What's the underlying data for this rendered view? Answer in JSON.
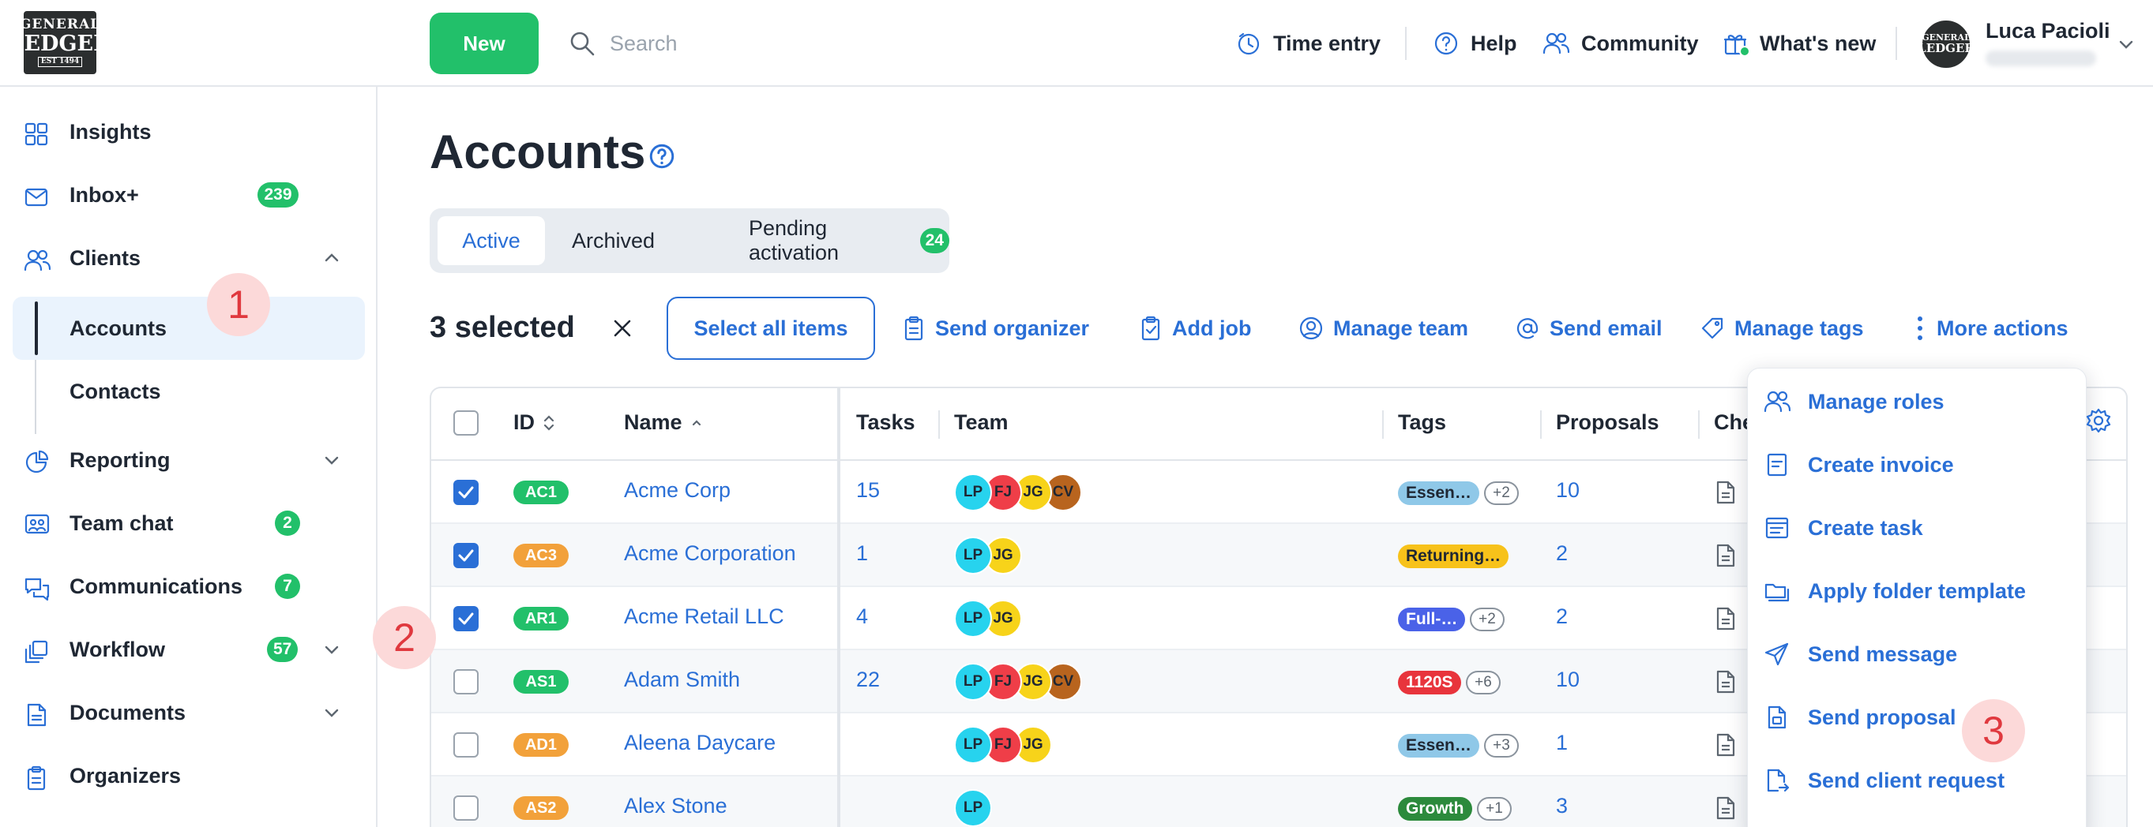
{
  "header": {
    "logo": {
      "line1": "GENERAL",
      "line2": "LEDGER",
      "line3": "EST 1494"
    },
    "new_label": "New",
    "search_placeholder": "Search",
    "nav": {
      "time_entry": "Time entry",
      "help": "Help",
      "community": "Community",
      "whats_new": "What's new"
    },
    "user": {
      "name": "Luca Pacioli"
    }
  },
  "sidebar": {
    "items": [
      {
        "label": "Insights"
      },
      {
        "label": "Inbox+",
        "badge": "239"
      },
      {
        "label": "Clients"
      },
      {
        "label": "Reporting"
      },
      {
        "label": "Team chat",
        "badge": "2"
      },
      {
        "label": "Communications",
        "badge": "7"
      },
      {
        "label": "Workflow",
        "badge": "57"
      },
      {
        "label": "Documents"
      },
      {
        "label": "Organizers"
      }
    ],
    "clients_sub": [
      {
        "label": "Accounts"
      },
      {
        "label": "Contacts"
      }
    ]
  },
  "steps": [
    "1",
    "2",
    "3"
  ],
  "page": {
    "title": "Accounts",
    "tabs": {
      "active": "Active",
      "archived": "Archived",
      "pending": "Pending activation",
      "pending_count": "24"
    }
  },
  "bulk": {
    "selected": "3 selected",
    "select_all": "Select all items",
    "actions": {
      "send_organizer": "Send organizer",
      "add_job": "Add job",
      "manage_team": "Manage team",
      "send_email": "Send email",
      "manage_tags": "Manage tags",
      "more_actions": "More actions"
    }
  },
  "table": {
    "columns": {
      "id": "ID",
      "name": "Name",
      "tasks": "Tasks",
      "team": "Team",
      "tags": "Tags",
      "proposals": "Proposals",
      "checklists": "Che"
    },
    "rows": [
      {
        "checked": true,
        "id": "AC1",
        "id_color": "#22c06a",
        "name": "Acme Corp",
        "tasks": "15",
        "team": [
          "LP",
          "FJ",
          "JG",
          "CV"
        ],
        "tag": "Essen…",
        "tag_bg": "#8fc8e8",
        "tag_fg": "#1f2733",
        "tag_more": "+2",
        "proposals": "10"
      },
      {
        "checked": true,
        "id": "AC3",
        "id_color": "#f2a13a",
        "name": "Acme Corporation",
        "tasks": "1",
        "team": [
          "LP",
          "JG"
        ],
        "tag": "Returning…",
        "tag_bg": "#f7c21a",
        "tag_fg": "#1f2733",
        "tag_more": "",
        "proposals": "2"
      },
      {
        "checked": true,
        "id": "AR1",
        "id_color": "#22c06a",
        "name": "Acme Retail LLC",
        "tasks": "4",
        "team": [
          "LP",
          "JG"
        ],
        "tag": "Full-…",
        "tag_bg": "#4a62e8",
        "tag_fg": "#ffffff",
        "tag_more": "+2",
        "proposals": "2"
      },
      {
        "checked": false,
        "id": "AS1",
        "id_color": "#22c06a",
        "name": "Adam Smith",
        "tasks": "22",
        "team": [
          "LP",
          "FJ",
          "JG",
          "CV"
        ],
        "tag": "1120S",
        "tag_bg": "#e8343c",
        "tag_fg": "#ffffff",
        "tag_more": "+6",
        "proposals": "10"
      },
      {
        "checked": false,
        "id": "AD1",
        "id_color": "#f2a13a",
        "name": "Aleena Daycare",
        "tasks": "",
        "team": [
          "LP",
          "FJ",
          "JG"
        ],
        "tag": "Essen…",
        "tag_bg": "#8fc8e8",
        "tag_fg": "#1f2733",
        "tag_more": "+3",
        "proposals": "1"
      },
      {
        "checked": false,
        "id": "AS2",
        "id_color": "#f2a13a",
        "name": "Alex Stone",
        "tasks": "",
        "team": [
          "LP"
        ],
        "tag": "Growth",
        "tag_bg": "#2c8a3c",
        "tag_fg": "#ffffff",
        "tag_more": "+1",
        "proposals": "3"
      }
    ]
  },
  "team_colors": {
    "LP": "#27d3ee",
    "FJ": "#ef3e48",
    "JG": "#f7d31a",
    "CV": "#b8641e"
  },
  "more_menu": {
    "items": [
      {
        "label": "Manage roles",
        "icon": "users-icon"
      },
      {
        "label": "Create invoice",
        "icon": "invoice-icon"
      },
      {
        "label": "Create task",
        "icon": "task-icon"
      },
      {
        "label": "Apply folder template",
        "icon": "folder-icon"
      },
      {
        "label": "Send message",
        "icon": "send-icon"
      },
      {
        "label": "Send proposal",
        "icon": "proposal-icon"
      },
      {
        "label": "Send client request",
        "icon": "request-icon"
      }
    ]
  }
}
